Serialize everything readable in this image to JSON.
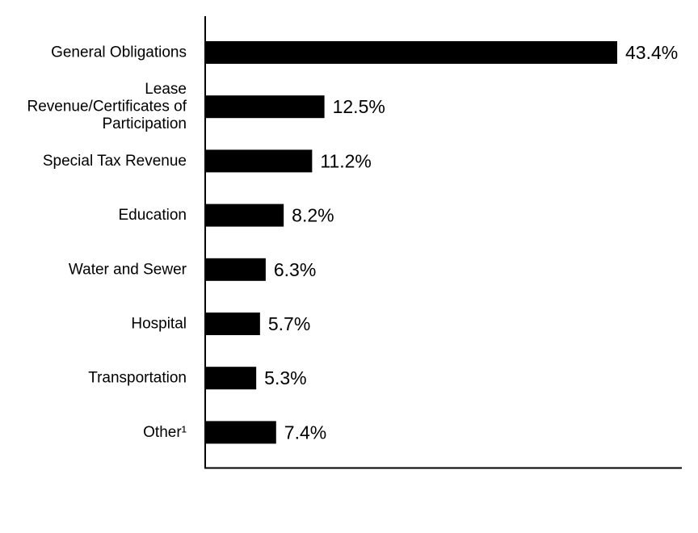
{
  "chart_data": {
    "type": "bar",
    "orientation": "horizontal",
    "categories": [
      [
        "General Obligations"
      ],
      [
        "Lease",
        "Revenue/Certificates of",
        "Participation"
      ],
      [
        "Special Tax Revenue"
      ],
      [
        "Education"
      ],
      [
        "Water and Sewer"
      ],
      [
        "Hospital"
      ],
      [
        "Transportation"
      ],
      [
        "Other¹"
      ]
    ],
    "values": [
      43.4,
      12.5,
      11.2,
      8.2,
      6.3,
      5.7,
      5.3,
      7.4
    ],
    "value_labels": [
      "43.4%",
      "12.5%",
      "11.2%",
      "8.2%",
      "6.3%",
      "5.7%",
      "5.3%",
      "7.4%"
    ],
    "unit": "%",
    "xlim": [
      0,
      50
    ],
    "grid": false,
    "legend": "none",
    "bar_color": "#000000",
    "axis_color": "#000000"
  }
}
